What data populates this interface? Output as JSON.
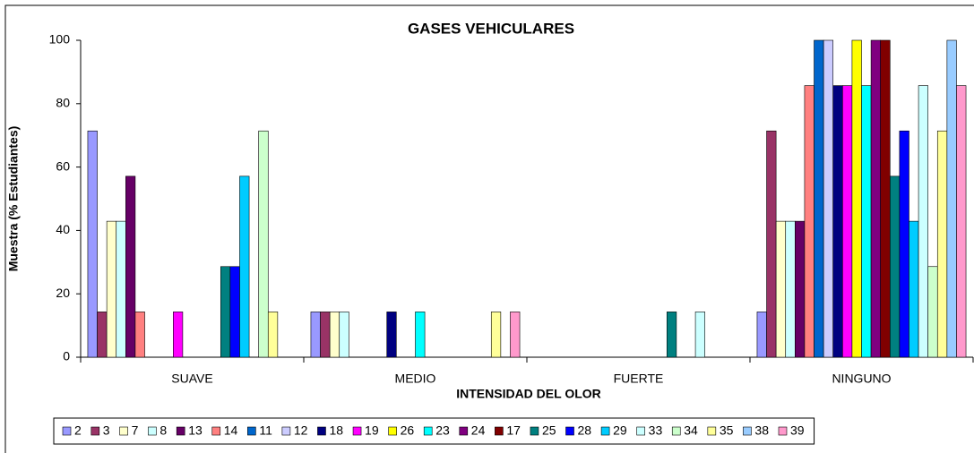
{
  "chart_data": {
    "type": "bar",
    "title": "GASES VEHICULARES",
    "x_label": "INTENSIDAD DEL OLOR",
    "y_label": "Muestra (% Estudiantes)",
    "categories": [
      "SUAVE",
      "MEDIO",
      "FUERTE",
      "NINGUNO"
    ],
    "ylim": [
      0,
      100
    ],
    "yticks": [
      0,
      20,
      40,
      60,
      80,
      100
    ],
    "grid": false,
    "legend": "bottom",
    "series": [
      {
        "name": "2",
        "color": "#9999ff",
        "values": [
          71.4,
          14.3,
          0,
          14.3
        ]
      },
      {
        "name": "3",
        "color": "#993366",
        "values": [
          14.3,
          14.3,
          0,
          71.4
        ]
      },
      {
        "name": "7",
        "color": "#ffffcc",
        "values": [
          42.9,
          14.3,
          0,
          42.9
        ]
      },
      {
        "name": "8",
        "color": "#ccffff",
        "values": [
          42.9,
          14.3,
          0,
          42.9
        ]
      },
      {
        "name": "13",
        "color": "#660066",
        "values": [
          57.1,
          0,
          0,
          42.9
        ]
      },
      {
        "name": "14",
        "color": "#ff8080",
        "values": [
          14.3,
          0,
          0,
          85.7
        ]
      },
      {
        "name": "11",
        "color": "#0066cc",
        "values": [
          0,
          0,
          0,
          100
        ]
      },
      {
        "name": "12",
        "color": "#ccccff",
        "values": [
          0,
          0,
          0,
          100
        ]
      },
      {
        "name": "18",
        "color": "#000080",
        "values": [
          0,
          14.3,
          0,
          85.7
        ]
      },
      {
        "name": "19",
        "color": "#ff00ff",
        "values": [
          14.3,
          0,
          0,
          85.7
        ]
      },
      {
        "name": "26",
        "color": "#ffff00",
        "values": [
          0,
          0,
          0,
          100
        ]
      },
      {
        "name": "23",
        "color": "#00ffff",
        "values": [
          0,
          14.3,
          0,
          85.7
        ]
      },
      {
        "name": "24",
        "color": "#800080",
        "values": [
          0,
          0,
          0,
          100
        ]
      },
      {
        "name": "17",
        "color": "#800000",
        "values": [
          0,
          0,
          0,
          100
        ]
      },
      {
        "name": "25",
        "color": "#008080",
        "values": [
          28.6,
          0,
          14.3,
          57.1
        ]
      },
      {
        "name": "28",
        "color": "#0000ff",
        "values": [
          28.6,
          0,
          0,
          71.4
        ]
      },
      {
        "name": "29",
        "color": "#00ccff",
        "values": [
          57.1,
          0,
          0,
          42.9
        ]
      },
      {
        "name": "33",
        "color": "#ccffff",
        "values": [
          0,
          0,
          14.3,
          85.7
        ]
      },
      {
        "name": "34",
        "color": "#ccffcc",
        "values": [
          71.4,
          0,
          0,
          28.6
        ]
      },
      {
        "name": "35",
        "color": "#ffff99",
        "values": [
          14.3,
          14.3,
          0,
          71.4
        ]
      },
      {
        "name": "38",
        "color": "#99ccff",
        "values": [
          0,
          0,
          0,
          100
        ]
      },
      {
        "name": "39",
        "color": "#ff99cc",
        "values": [
          0,
          14.3,
          0,
          85.7
        ]
      }
    ]
  }
}
